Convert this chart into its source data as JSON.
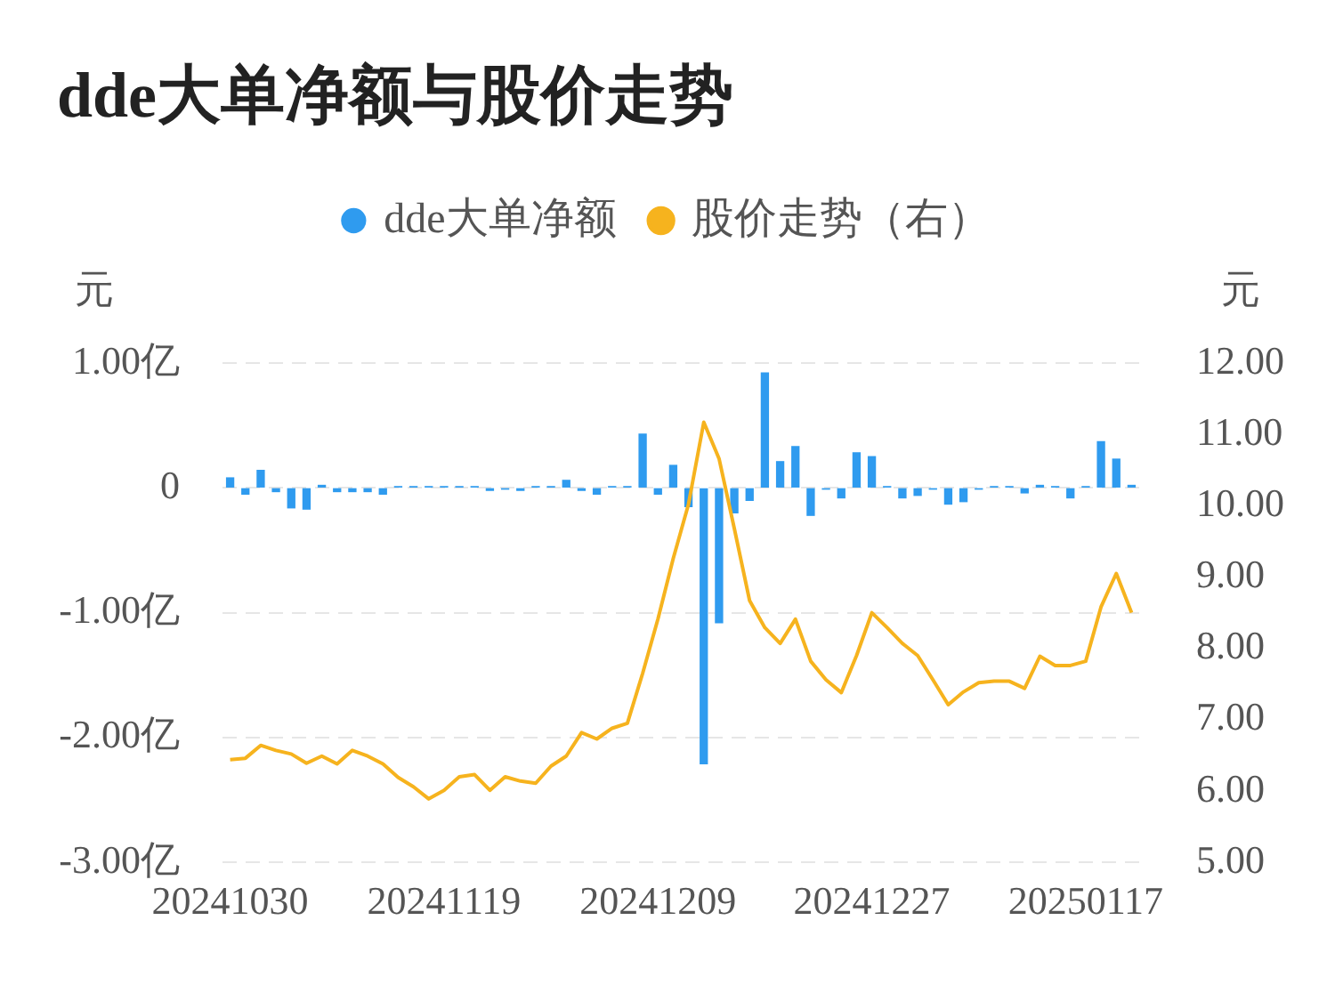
{
  "chart_data": {
    "type": "bar",
    "title": "dde大单净额与股价走势",
    "categories": [
      "20241030",
      null,
      null,
      null,
      null,
      null,
      null,
      null,
      null,
      null,
      null,
      null,
      null,
      null,
      "20241119",
      null,
      null,
      null,
      null,
      null,
      null,
      null,
      null,
      null,
      null,
      null,
      null,
      null,
      "20241209",
      null,
      null,
      null,
      null,
      null,
      null,
      null,
      null,
      null,
      null,
      null,
      null,
      null,
      "20241227",
      null,
      null,
      null,
      null,
      null,
      null,
      null,
      null,
      null,
      null,
      null,
      null,
      null,
      "20250117",
      null,
      null,
      null
    ],
    "series": [
      {
        "name": "dde大单净额",
        "color": "#2f9bef",
        "values": [
          0.08,
          -0.05,
          0.14,
          -0.03,
          -0.16,
          -0.17,
          0.02,
          -0.03,
          -0.03,
          -0.03,
          -0.05,
          0.01,
          0.01,
          0.01,
          0.01,
          0.01,
          0.01,
          -0.02,
          -0.01,
          -0.02,
          0.01,
          0.01,
          0.06,
          -0.02,
          -0.05,
          0.01,
          0.01,
          0.43,
          -0.05,
          0.18,
          -0.15,
          -2.21,
          -1.08,
          -0.2,
          -0.1,
          0.92,
          0.21,
          0.33,
          -0.22,
          -0.01,
          -0.08,
          0.28,
          0.25,
          0.01,
          -0.08,
          -0.06,
          -0.01,
          -0.13,
          -0.11,
          -0.01,
          0.01,
          0.01,
          -0.04,
          0.02,
          0.01,
          -0.08,
          0.01,
          0.37,
          0.23,
          0.02
        ]
      },
      {
        "name": "股价走势（右）",
        "type": "line",
        "axis": "y2",
        "color": "#f6b31e",
        "values": [
          6.44,
          6.46,
          6.64,
          6.57,
          6.52,
          6.39,
          6.49,
          6.38,
          6.57,
          6.49,
          6.38,
          6.19,
          6.06,
          5.89,
          6.01,
          6.2,
          6.23,
          6.01,
          6.2,
          6.14,
          6.11,
          6.35,
          6.49,
          6.82,
          6.73,
          6.88,
          6.95,
          7.65,
          8.41,
          9.26,
          10.02,
          11.17,
          10.66,
          9.68,
          8.67,
          8.29,
          8.07,
          8.41,
          7.82,
          7.56,
          7.38,
          7.9,
          8.5,
          8.29,
          8.07,
          7.9,
          7.56,
          7.21,
          7.39,
          7.52,
          7.54,
          7.54,
          7.44,
          7.89,
          7.76,
          7.76,
          7.82,
          8.58,
          9.05,
          8.5
        ]
      }
    ],
    "ylabel": "元",
    "y2label": "元",
    "ylim": [
      -3,
      1
    ],
    "yticks": [
      {
        "value": -3,
        "label": "-3.00亿"
      },
      {
        "value": -2,
        "label": "-2.00亿"
      },
      {
        "value": -1,
        "label": "-1.00亿"
      },
      0,
      {
        "value": 1,
        "label": "1.00亿"
      }
    ],
    "y2lim": [
      5,
      12
    ],
    "y2ticks": [
      {
        "value": 5,
        "label": "5.00"
      },
      {
        "value": 6,
        "label": "6.00"
      },
      {
        "value": 7,
        "label": "7.00"
      },
      {
        "value": 8,
        "label": "8.00"
      },
      {
        "value": 9,
        "label": "9.00"
      },
      {
        "value": 10,
        "label": "10.00"
      },
      {
        "value": 11,
        "label": "11.00"
      },
      {
        "value": 12,
        "label": "12.00"
      }
    ],
    "grid": "y",
    "legend": "top",
    "marker": "none",
    "line_style": "solid"
  }
}
